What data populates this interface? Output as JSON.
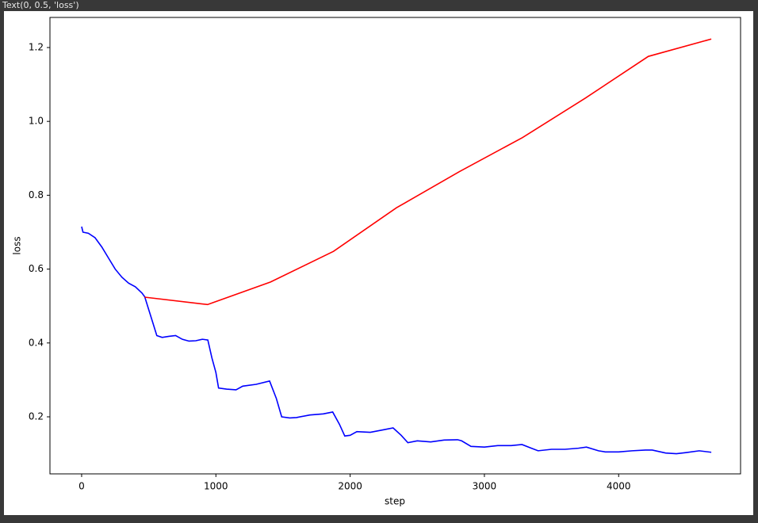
{
  "cell_output": "Text(0, 0.5, 'loss')",
  "chart_data": {
    "type": "line",
    "x_label": "step",
    "y_label": "loss",
    "xlim": [
      -236,
      4908
    ],
    "ylim": [
      0.0455,
      1.2815
    ],
    "xticks": [
      0,
      1000,
      2000,
      3000,
      4000
    ],
    "yticks": [
      0.2,
      0.4,
      0.6,
      0.8,
      {
        "value": 1,
        "label": "1.0"
      },
      1.2
    ],
    "grid": false,
    "series": [
      {
        "color": "#0000ff",
        "x": [
          0,
          10,
          50,
          100,
          150,
          200,
          250,
          300,
          350,
          400,
          450,
          470,
          500,
          530,
          560,
          600,
          650,
          700,
          750,
          800,
          850,
          900,
          940,
          970,
          1000,
          1020,
          1080,
          1150,
          1200,
          1300,
          1400,
          1450,
          1490,
          1550,
          1600,
          1700,
          1800,
          1870,
          1920,
          1960,
          2000,
          2050,
          2150,
          2250,
          2320,
          2380,
          2430,
          2500,
          2600,
          2700,
          2800,
          2830,
          2900,
          3000,
          3100,
          3200,
          3280,
          3350,
          3400,
          3500,
          3600,
          3700,
          3760,
          3850,
          3900,
          4000,
          4100,
          4200,
          4250,
          4350,
          4430,
          4500,
          4600,
          4690
        ],
        "values": [
          0.715,
          0.7,
          0.697,
          0.685,
          0.66,
          0.63,
          0.6,
          0.578,
          0.562,
          0.552,
          0.535,
          0.525,
          0.49,
          0.455,
          0.42,
          0.415,
          0.418,
          0.42,
          0.41,
          0.405,
          0.406,
          0.41,
          0.408,
          0.36,
          0.32,
          0.278,
          0.275,
          0.273,
          0.283,
          0.288,
          0.297,
          0.25,
          0.2,
          0.197,
          0.198,
          0.205,
          0.208,
          0.213,
          0.18,
          0.148,
          0.15,
          0.16,
          0.158,
          0.165,
          0.17,
          0.15,
          0.13,
          0.135,
          0.132,
          0.137,
          0.138,
          0.135,
          0.12,
          0.118,
          0.122,
          0.122,
          0.125,
          0.115,
          0.108,
          0.112,
          0.112,
          0.115,
          0.118,
          0.108,
          0.105,
          0.105,
          0.108,
          0.11,
          0.11,
          0.102,
          0.1,
          0.103,
          0.108,
          0.104
        ]
      },
      {
        "color": "#ff0000",
        "x": [
          469,
          938,
          1407,
          1876,
          2345,
          2814,
          3283,
          3752,
          4221,
          4690
        ],
        "values": [
          0.524,
          0.504,
          0.565,
          0.648,
          0.766,
          0.864,
          0.956,
          1.063,
          1.176,
          1.223
        ]
      }
    ]
  }
}
